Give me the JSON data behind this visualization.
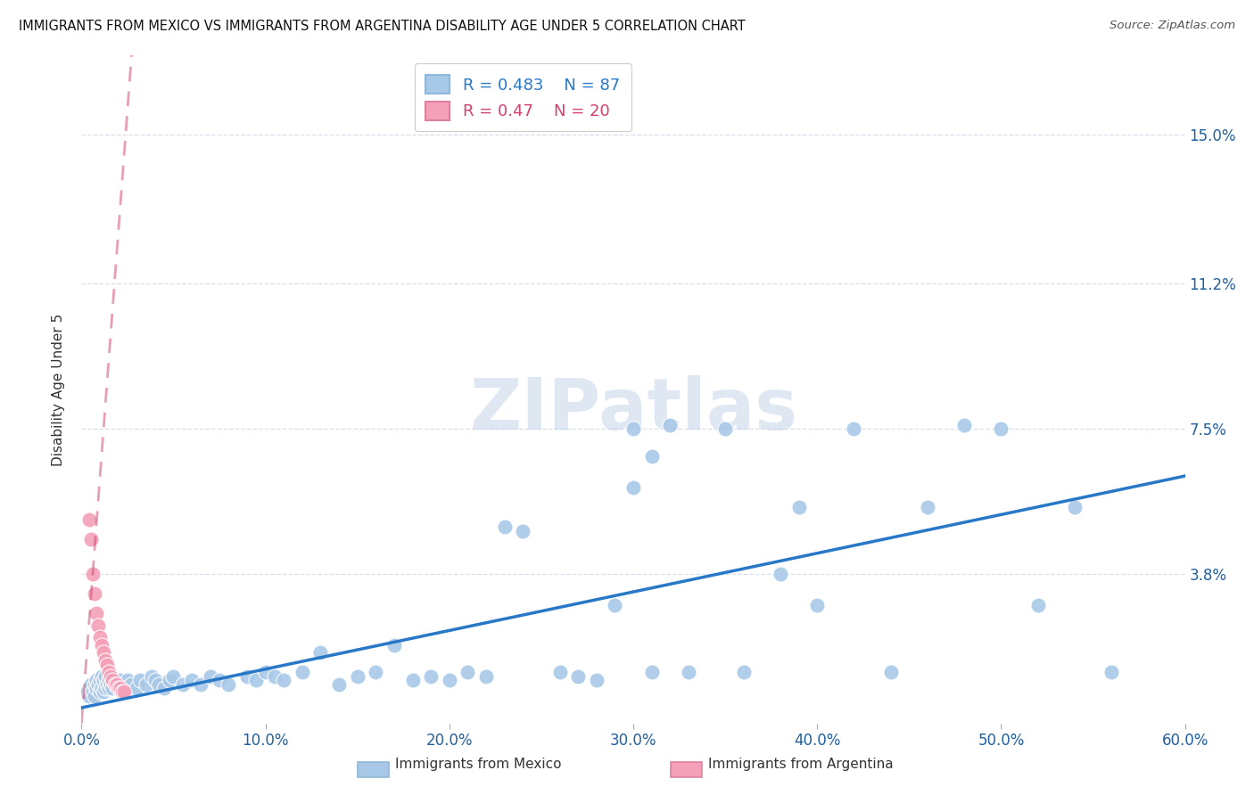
{
  "title": "IMMIGRANTS FROM MEXICO VS IMMIGRANTS FROM ARGENTINA DISABILITY AGE UNDER 5 CORRELATION CHART",
  "source": "Source: ZipAtlas.com",
  "ylabel": "Disability Age Under 5",
  "xlim": [
    0.0,
    0.6
  ],
  "ylim": [
    0.0,
    0.17
  ],
  "xtick_values": [
    0.0,
    0.1,
    0.2,
    0.3,
    0.4,
    0.5,
    0.6
  ],
  "xtick_labels": [
    "0.0%",
    "10.0%",
    "20.0%",
    "30.0%",
    "40.0%",
    "50.0%",
    "60.0%"
  ],
  "ytick_values": [
    0.038,
    0.075,
    0.112,
    0.15
  ],
  "ytick_labels": [
    "3.8%",
    "7.5%",
    "11.2%",
    "15.0%"
  ],
  "mexico_color": "#a8c8e8",
  "argentina_color": "#f4a0b8",
  "mexico_R": 0.483,
  "mexico_N": 87,
  "argentina_R": 0.47,
  "argentina_N": 20,
  "mexico_line_color": "#2878c8",
  "argentina_line_color": "#d04070",
  "watermark": "ZIPatlas",
  "legend_label_mexico": "Immigrants from Mexico",
  "legend_label_argentina": "Immigrants from Argentina",
  "mexico_x": [
    0.003,
    0.004,
    0.005,
    0.005,
    0.006,
    0.007,
    0.007,
    0.008,
    0.008,
    0.009,
    0.01,
    0.01,
    0.011,
    0.011,
    0.012,
    0.012,
    0.013,
    0.013,
    0.014,
    0.015,
    0.015,
    0.016,
    0.017,
    0.018,
    0.019,
    0.02,
    0.021,
    0.022,
    0.023,
    0.025,
    0.027,
    0.03,
    0.032,
    0.035,
    0.038,
    0.04,
    0.042,
    0.045,
    0.048,
    0.05,
    0.055,
    0.06,
    0.065,
    0.07,
    0.075,
    0.08,
    0.09,
    0.095,
    0.1,
    0.105,
    0.11,
    0.12,
    0.13,
    0.14,
    0.15,
    0.16,
    0.17,
    0.18,
    0.19,
    0.2,
    0.21,
    0.22,
    0.23,
    0.24,
    0.26,
    0.27,
    0.28,
    0.29,
    0.3,
    0.31,
    0.32,
    0.33,
    0.35,
    0.36,
    0.38,
    0.39,
    0.4,
    0.42,
    0.44,
    0.46,
    0.48,
    0.5,
    0.52,
    0.54,
    0.56,
    0.3,
    0.31
  ],
  "mexico_y": [
    0.008,
    0.007,
    0.009,
    0.01,
    0.008,
    0.007,
    0.01,
    0.009,
    0.011,
    0.01,
    0.008,
    0.011,
    0.009,
    0.012,
    0.008,
    0.011,
    0.009,
    0.012,
    0.01,
    0.009,
    0.011,
    0.01,
    0.009,
    0.011,
    0.01,
    0.009,
    0.011,
    0.01,
    0.009,
    0.011,
    0.01,
    0.009,
    0.011,
    0.01,
    0.012,
    0.011,
    0.01,
    0.009,
    0.011,
    0.012,
    0.01,
    0.011,
    0.01,
    0.012,
    0.011,
    0.01,
    0.012,
    0.011,
    0.013,
    0.012,
    0.011,
    0.013,
    0.018,
    0.01,
    0.012,
    0.013,
    0.02,
    0.011,
    0.012,
    0.011,
    0.013,
    0.012,
    0.05,
    0.049,
    0.013,
    0.012,
    0.011,
    0.03,
    0.075,
    0.013,
    0.076,
    0.013,
    0.075,
    0.013,
    0.038,
    0.055,
    0.03,
    0.075,
    0.013,
    0.055,
    0.076,
    0.075,
    0.03,
    0.055,
    0.013,
    0.06,
    0.068
  ],
  "argentina_x": [
    0.004,
    0.005,
    0.006,
    0.007,
    0.008,
    0.009,
    0.01,
    0.011,
    0.012,
    0.013,
    0.014,
    0.015,
    0.016,
    0.017,
    0.018,
    0.019,
    0.02,
    0.021,
    0.022,
    0.023
  ],
  "argentina_y": [
    0.052,
    0.047,
    0.038,
    0.033,
    0.028,
    0.025,
    0.022,
    0.02,
    0.018,
    0.016,
    0.015,
    0.013,
    0.012,
    0.011,
    0.01,
    0.01,
    0.009,
    0.009,
    0.008,
    0.008
  ]
}
